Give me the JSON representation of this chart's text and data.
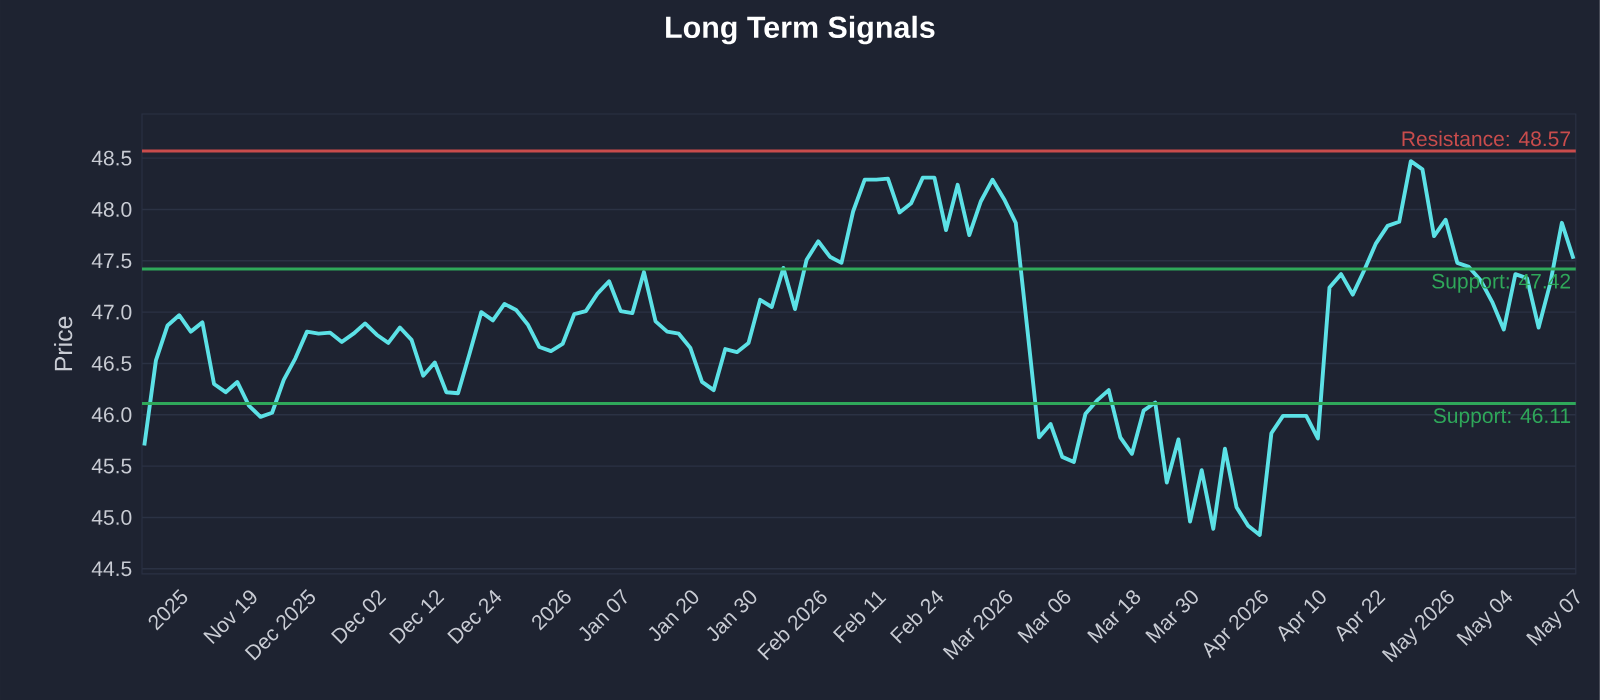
{
  "chart_data": {
    "type": "line",
    "title": "Long Term Signals",
    "ylabel": "Price",
    "categories": [
      null,
      null,
      null,
      "2025",
      null,
      null,
      null,
      null,
      null,
      "Nov 19",
      null,
      null,
      null,
      null,
      "Dec 2025",
      null,
      null,
      null,
      null,
      null,
      "Dec 02",
      null,
      null,
      null,
      null,
      "Dec 12",
      null,
      null,
      null,
      null,
      "Dec 24",
      null,
      null,
      null,
      null,
      null,
      "2026",
      null,
      null,
      null,
      null,
      "Jan 07",
      null,
      null,
      null,
      null,
      null,
      "Jan 20",
      null,
      null,
      null,
      null,
      "Jan 30",
      null,
      null,
      null,
      null,
      null,
      "Feb 2026",
      null,
      null,
      null,
      null,
      "Feb 11",
      null,
      null,
      null,
      null,
      "Feb 24",
      null,
      null,
      null,
      null,
      null,
      "Mar 2026",
      null,
      null,
      null,
      null,
      "Mar 06",
      null,
      null,
      null,
      null,
      null,
      "Mar 18",
      null,
      null,
      null,
      null,
      "Mar 30",
      null,
      null,
      null,
      null,
      null,
      "Apr 2026",
      null,
      null,
      null,
      null,
      "Apr 10",
      null,
      null,
      null,
      null,
      "Apr 22",
      null,
      null,
      null,
      null,
      null,
      "May 2026",
      null,
      null,
      null,
      null,
      "May 04",
      null,
      null,
      null,
      null,
      null,
      "May 07"
    ],
    "series": [
      {
        "color": "#5ce1e6",
        "values": [
          45.7,
          46.53,
          46.87,
          46.97,
          46.81,
          46.9,
          46.3,
          46.22,
          46.32,
          46.09,
          45.98,
          46.02,
          46.34,
          46.55,
          46.81,
          46.79,
          46.8,
          46.71,
          46.79,
          46.89,
          46.78,
          46.7,
          46.85,
          46.73,
          46.38,
          46.51,
          46.22,
          46.21,
          46.6,
          47.0,
          46.92,
          47.08,
          47.02,
          46.88,
          46.66,
          46.62,
          46.69,
          46.98,
          47.01,
          47.18,
          47.3,
          47.01,
          46.99,
          47.39,
          46.91,
          46.81,
          46.79,
          46.65,
          46.32,
          46.24,
          46.64,
          46.61,
          46.7,
          47.12,
          47.05,
          47.43,
          47.03,
          47.51,
          47.69,
          47.54,
          47.48,
          47.98,
          48.29,
          48.29,
          48.3,
          47.97,
          48.06,
          48.31,
          48.31,
          47.8,
          48.24,
          47.75,
          48.08,
          48.29,
          48.1,
          47.87,
          46.83,
          45.78,
          45.91,
          45.59,
          45.54,
          46.01,
          46.14,
          46.24,
          45.78,
          45.62,
          46.04,
          46.12,
          45.34,
          45.76,
          44.96,
          45.46,
          44.89,
          45.67,
          45.1,
          44.92,
          44.83,
          45.82,
          45.99,
          45.99,
          45.99,
          45.77,
          47.24,
          47.37,
          47.17,
          47.41,
          47.67,
          47.84,
          47.88,
          48.47,
          48.39,
          47.74,
          47.9,
          47.48,
          47.44,
          47.31,
          47.1,
          46.83,
          47.37,
          47.33,
          46.85,
          47.28,
          47.87,
          47.52
        ]
      }
    ],
    "ylim": [
      44.45,
      48.93
    ],
    "yticks": [
      44.5,
      {
        "value": 45,
        "label": "45.0"
      },
      45.5,
      {
        "value": 46,
        "label": "46.0"
      },
      46.5,
      {
        "value": 47,
        "label": "47.0"
      },
      47.5,
      {
        "value": 48,
        "label": "48.0"
      },
      48.5
    ],
    "ref_lines": [
      {
        "axis": "y",
        "value": 48.57,
        "label": "Resistance: 48.57",
        "color": "#c94c4c"
      },
      {
        "axis": "y",
        "value": 47.42,
        "label": "Support: 47.42",
        "color": "#2fa85a"
      },
      {
        "axis": "y",
        "value": 46.11,
        "label": "Support: 46.11",
        "color": "#2fa85a"
      }
    ],
    "grid": "y",
    "marker": "none",
    "line_style": "solid"
  }
}
